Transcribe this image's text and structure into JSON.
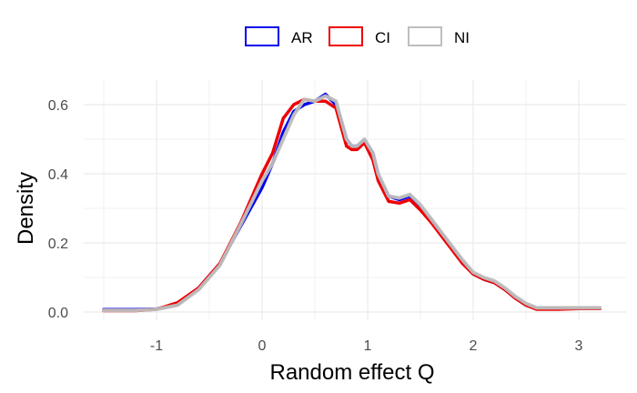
{
  "chart_data": {
    "type": "line",
    "title": "",
    "xlabel": "Random effect Q",
    "ylabel": "Density",
    "xlim": [
      -1.5,
      3.2
    ],
    "ylim": [
      0,
      0.63
    ],
    "x_ticks": [
      -1,
      0,
      1,
      2,
      3
    ],
    "x_tick_labels": [
      "-1",
      "0",
      "1",
      "2",
      "3"
    ],
    "y_ticks": [
      0.0,
      0.2,
      0.4,
      0.6
    ],
    "y_tick_labels": [
      "0.0",
      "0.2",
      "0.4",
      "0.6"
    ],
    "grid": true,
    "legend_position": "top",
    "series": [
      {
        "name": "AR",
        "color": "#0000ee",
        "points": [
          [
            -1.5,
            0.007
          ],
          [
            -1.2,
            0.007
          ],
          [
            -1.0,
            0.009
          ],
          [
            -0.8,
            0.022
          ],
          [
            -0.6,
            0.07
          ],
          [
            -0.4,
            0.14
          ],
          [
            -0.2,
            0.25
          ],
          [
            0.0,
            0.36
          ],
          [
            0.1,
            0.43
          ],
          [
            0.2,
            0.52
          ],
          [
            0.3,
            0.58
          ],
          [
            0.4,
            0.6
          ],
          [
            0.5,
            0.61
          ],
          [
            0.6,
            0.63
          ],
          [
            0.7,
            0.6
          ],
          [
            0.8,
            0.5
          ],
          [
            0.85,
            0.48
          ],
          [
            0.9,
            0.48
          ],
          [
            0.97,
            0.495
          ],
          [
            1.05,
            0.46
          ],
          [
            1.1,
            0.39
          ],
          [
            1.2,
            0.335
          ],
          [
            1.3,
            0.325
          ],
          [
            1.4,
            0.335
          ],
          [
            1.5,
            0.3
          ],
          [
            1.6,
            0.265
          ],
          [
            1.7,
            0.225
          ],
          [
            1.8,
            0.185
          ],
          [
            1.9,
            0.145
          ],
          [
            2.0,
            0.11
          ],
          [
            2.1,
            0.095
          ],
          [
            2.2,
            0.085
          ],
          [
            2.3,
            0.065
          ],
          [
            2.4,
            0.04
          ],
          [
            2.5,
            0.02
          ],
          [
            2.6,
            0.01
          ],
          [
            2.8,
            0.01
          ],
          [
            3.0,
            0.01
          ],
          [
            3.2,
            0.01
          ]
        ]
      },
      {
        "name": "CI",
        "color": "#ee0000",
        "points": [
          [
            -1.5,
            0.004
          ],
          [
            -1.2,
            0.004
          ],
          [
            -1.0,
            0.008
          ],
          [
            -0.8,
            0.027
          ],
          [
            -0.6,
            0.07
          ],
          [
            -0.4,
            0.14
          ],
          [
            -0.2,
            0.26
          ],
          [
            0.0,
            0.4
          ],
          [
            0.1,
            0.46
          ],
          [
            0.2,
            0.56
          ],
          [
            0.3,
            0.6
          ],
          [
            0.4,
            0.615
          ],
          [
            0.5,
            0.61
          ],
          [
            0.6,
            0.61
          ],
          [
            0.7,
            0.59
          ],
          [
            0.8,
            0.48
          ],
          [
            0.85,
            0.47
          ],
          [
            0.9,
            0.47
          ],
          [
            0.97,
            0.49
          ],
          [
            1.05,
            0.44
          ],
          [
            1.1,
            0.38
          ],
          [
            1.2,
            0.32
          ],
          [
            1.3,
            0.315
          ],
          [
            1.4,
            0.325
          ],
          [
            1.5,
            0.295
          ],
          [
            1.6,
            0.26
          ],
          [
            1.7,
            0.22
          ],
          [
            1.8,
            0.18
          ],
          [
            1.9,
            0.14
          ],
          [
            2.0,
            0.11
          ],
          [
            2.1,
            0.095
          ],
          [
            2.2,
            0.085
          ],
          [
            2.3,
            0.065
          ],
          [
            2.4,
            0.04
          ],
          [
            2.5,
            0.02
          ],
          [
            2.6,
            0.008
          ],
          [
            2.8,
            0.008
          ],
          [
            3.0,
            0.01
          ],
          [
            3.2,
            0.01
          ]
        ]
      },
      {
        "name": "NI",
        "color": "#bebebe",
        "points": [
          [
            -1.5,
            0.005
          ],
          [
            -1.2,
            0.005
          ],
          [
            -1.0,
            0.008
          ],
          [
            -0.8,
            0.02
          ],
          [
            -0.6,
            0.065
          ],
          [
            -0.4,
            0.135
          ],
          [
            -0.2,
            0.255
          ],
          [
            0.0,
            0.38
          ],
          [
            0.1,
            0.43
          ],
          [
            0.2,
            0.5
          ],
          [
            0.3,
            0.57
          ],
          [
            0.4,
            0.615
          ],
          [
            0.5,
            0.61
          ],
          [
            0.6,
            0.625
          ],
          [
            0.7,
            0.61
          ],
          [
            0.8,
            0.5
          ],
          [
            0.85,
            0.48
          ],
          [
            0.9,
            0.48
          ],
          [
            0.97,
            0.5
          ],
          [
            1.05,
            0.46
          ],
          [
            1.1,
            0.4
          ],
          [
            1.2,
            0.335
          ],
          [
            1.3,
            0.33
          ],
          [
            1.4,
            0.34
          ],
          [
            1.5,
            0.31
          ],
          [
            1.6,
            0.27
          ],
          [
            1.7,
            0.23
          ],
          [
            1.8,
            0.19
          ],
          [
            1.9,
            0.15
          ],
          [
            2.0,
            0.115
          ],
          [
            2.1,
            0.1
          ],
          [
            2.2,
            0.09
          ],
          [
            2.3,
            0.07
          ],
          [
            2.4,
            0.045
          ],
          [
            2.5,
            0.025
          ],
          [
            2.6,
            0.012
          ],
          [
            2.8,
            0.012
          ],
          [
            3.0,
            0.012
          ],
          [
            3.2,
            0.012
          ]
        ]
      }
    ]
  }
}
